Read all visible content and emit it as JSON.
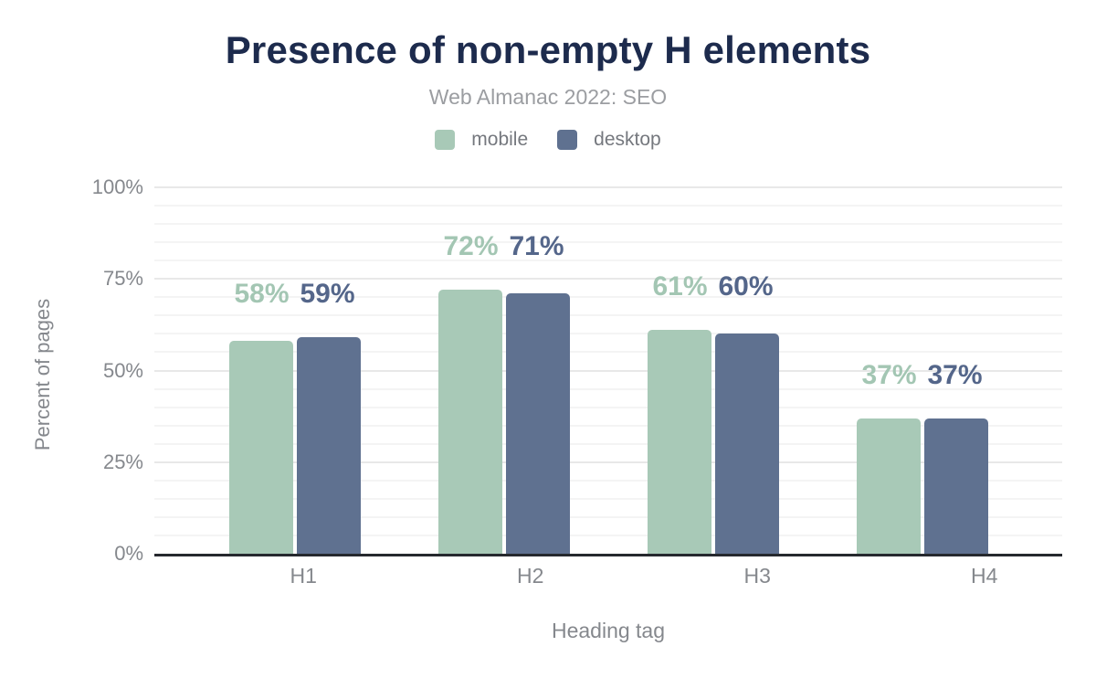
{
  "chart_data": {
    "type": "bar",
    "title": "Presence of non-empty H elements",
    "subtitle": "Web Almanac 2022: SEO",
    "categories": [
      "H1",
      "H2",
      "H3",
      "H4"
    ],
    "series": [
      {
        "name": "mobile",
        "color": "#a8c9b7",
        "label_color": "#a3c6b3",
        "values": [
          58,
          72,
          61,
          37
        ]
      },
      {
        "name": "desktop",
        "color": "#5f7190",
        "label_color": "#54668a",
        "values": [
          59,
          71,
          60,
          37
        ]
      }
    ],
    "value_suffix": "%",
    "xlabel": "Heading tag",
    "ylabel": "Percent of pages",
    "ylim": [
      0,
      100
    ],
    "yticks_major": [
      0,
      25,
      50,
      75,
      100
    ],
    "ytick_labels": [
      "0%",
      "25%",
      "50%",
      "75%",
      "100%"
    ],
    "minor_grid_step": 5,
    "grid": true,
    "legend_position": "top"
  },
  "styles": {
    "background": "#ffffff",
    "title_color": "#1d2b4d",
    "subtitle_color": "#9b9da1",
    "legend_text_color": "#75787e",
    "axis_text_color": "#85888d",
    "grid_major": "#e8e8e8",
    "grid_minor": "#f4f4f4",
    "axis_line_color": "#26292e"
  }
}
